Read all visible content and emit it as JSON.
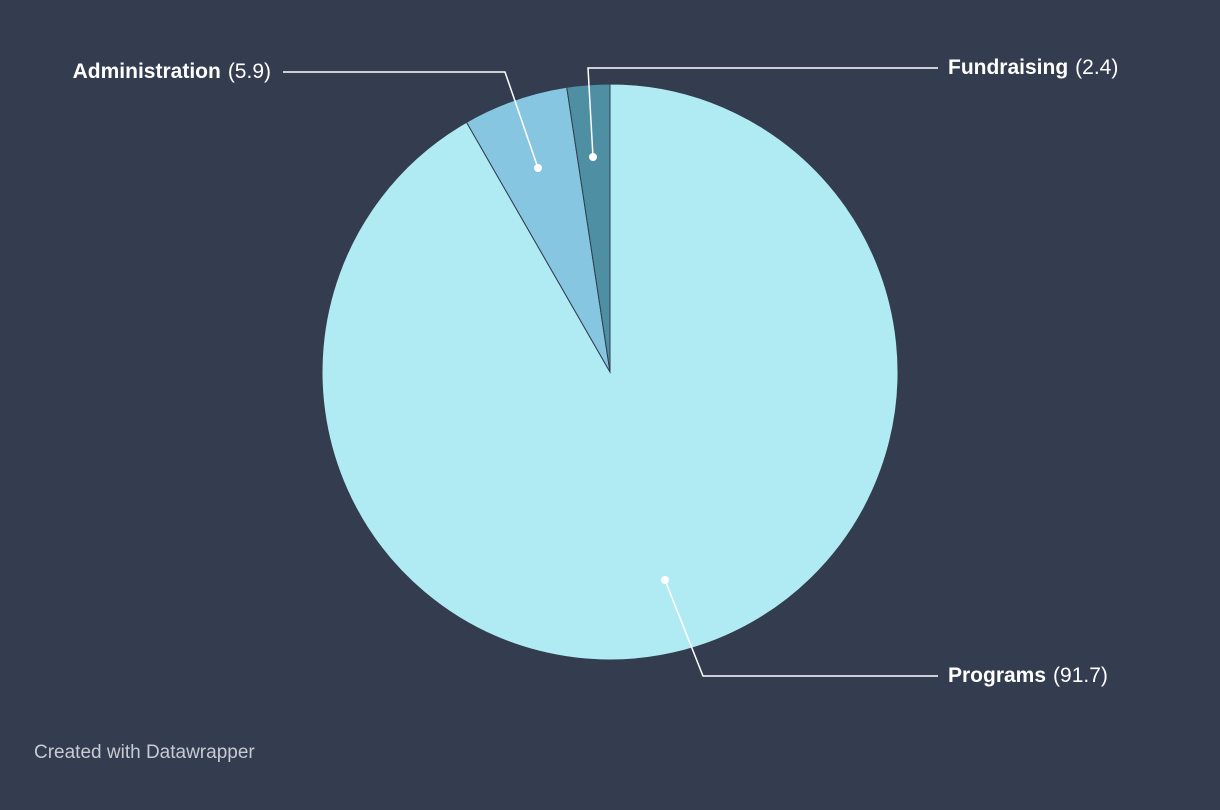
{
  "chart_data": {
    "type": "pie",
    "categories": [
      "Programs",
      "Administration",
      "Fundraising"
    ],
    "values": [
      91.7,
      5.9,
      2.4
    ],
    "value_labels": [
      "(91.7)",
      "(5.9)",
      "(2.4)"
    ],
    "colors": [
      "#b0ebf3",
      "#86c6e0",
      "#4f8fa4"
    ],
    "footer": "Created with Datawrapper"
  }
}
